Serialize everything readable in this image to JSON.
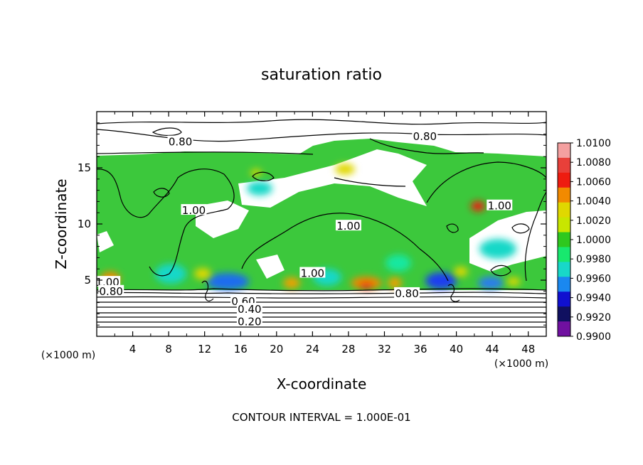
{
  "chart_data": {
    "type": "heatmap",
    "title": "saturation ratio",
    "xlabel": "X-coordinate",
    "ylabel": "Z-coordinate",
    "x_unit": "(×1000 m)",
    "z_unit": "(×1000 m)",
    "xlim": [
      0,
      50
    ],
    "zlim": [
      0,
      20
    ],
    "x_ticks": [
      "4",
      "8",
      "12",
      "16",
      "20",
      "24",
      "28",
      "32",
      "36",
      "40",
      "44",
      "48"
    ],
    "z_ticks": [
      "5",
      "10",
      "15"
    ],
    "footer": "CONTOUR INTERVAL = 1.000E-01",
    "contour_labels": [
      {
        "text": "0.80",
        "x": 9.3,
        "z": 17.3
      },
      {
        "text": "0.80",
        "x": 36.5,
        "z": 17.8
      },
      {
        "text": "1.00",
        "x": 10.8,
        "z": 11.2
      },
      {
        "text": "1.00",
        "x": 28.0,
        "z": 9.8
      },
      {
        "text": "1.00",
        "x": 44.8,
        "z": 11.6
      },
      {
        "text": "1.00",
        "x": 24.0,
        "z": 5.6
      },
      {
        "text": "1.00",
        "x": 1.2,
        "z": 4.8
      },
      {
        "text": "0.80",
        "x": 1.6,
        "z": 4.0
      },
      {
        "text": "0.80",
        "x": 34.5,
        "z": 3.8
      },
      {
        "text": "0.60",
        "x": 16.3,
        "z": 3.1
      },
      {
        "text": "0.40",
        "x": 17.0,
        "z": 2.4
      },
      {
        "text": "0.20",
        "x": 17.0,
        "z": 1.3
      }
    ],
    "colorbar": {
      "labels": [
        "1.0100",
        "1.0080",
        "1.0060",
        "1.0040",
        "1.0020",
        "1.0000",
        "0.9980",
        "0.9960",
        "0.9940",
        "0.9920",
        "0.9900"
      ],
      "colors": [
        "#f4a0a0",
        "#e8403a",
        "#ee1c10",
        "#f28a00",
        "#e0d800",
        "#c8e600",
        "#2ec81e",
        "#18e86e",
        "#18d8c8",
        "#1a88f0",
        "#1010d0",
        "#101060",
        "#7010a0"
      ]
    }
  }
}
